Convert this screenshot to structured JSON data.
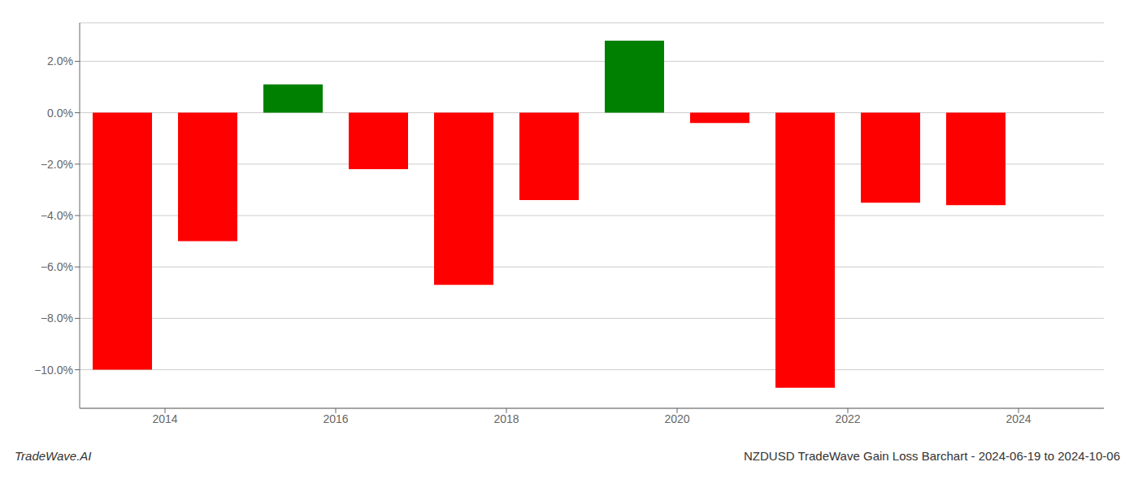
{
  "chart_data": {
    "type": "bar",
    "x": [
      2013.5,
      2014.5,
      2015.5,
      2016.5,
      2017.5,
      2018.5,
      2019.5,
      2020.5,
      2021.5,
      2022.5,
      2023.5
    ],
    "values": [
      -10.0,
      -5.0,
      1.1,
      -2.2,
      -6.7,
      -3.4,
      2.8,
      -0.4,
      -10.7,
      -3.5,
      -3.6
    ],
    "colors": [
      "#ff0000",
      "#ff0000",
      "#008000",
      "#ff0000",
      "#ff0000",
      "#ff0000",
      "#008000",
      "#ff0000",
      "#ff0000",
      "#ff0000",
      "#ff0000"
    ],
    "xlim": [
      2013.0,
      2025.0
    ],
    "xticks": [
      2014,
      2016,
      2018,
      2020,
      2022,
      2024
    ],
    "ylim": [
      -11.5,
      3.5
    ],
    "yticks": [
      {
        "value": -10.0,
        "label": "−10.0%"
      },
      {
        "value": -8.0,
        "label": "−8.0%"
      },
      {
        "value": -6.0,
        "label": "−6.0%"
      },
      {
        "value": -4.0,
        "label": "−4.0%"
      },
      {
        "value": -2.0,
        "label": "−2.0%"
      },
      {
        "value": 0.0,
        "label": "0.0%"
      },
      {
        "value": 2.0,
        "label": "2.0%"
      }
    ],
    "grid": true,
    "annotations": [
      "TradeWave.AI",
      "NZDUSD TradeWave Gain Loss Barchart - 2024-06-19 to 2024-10-06"
    ]
  }
}
